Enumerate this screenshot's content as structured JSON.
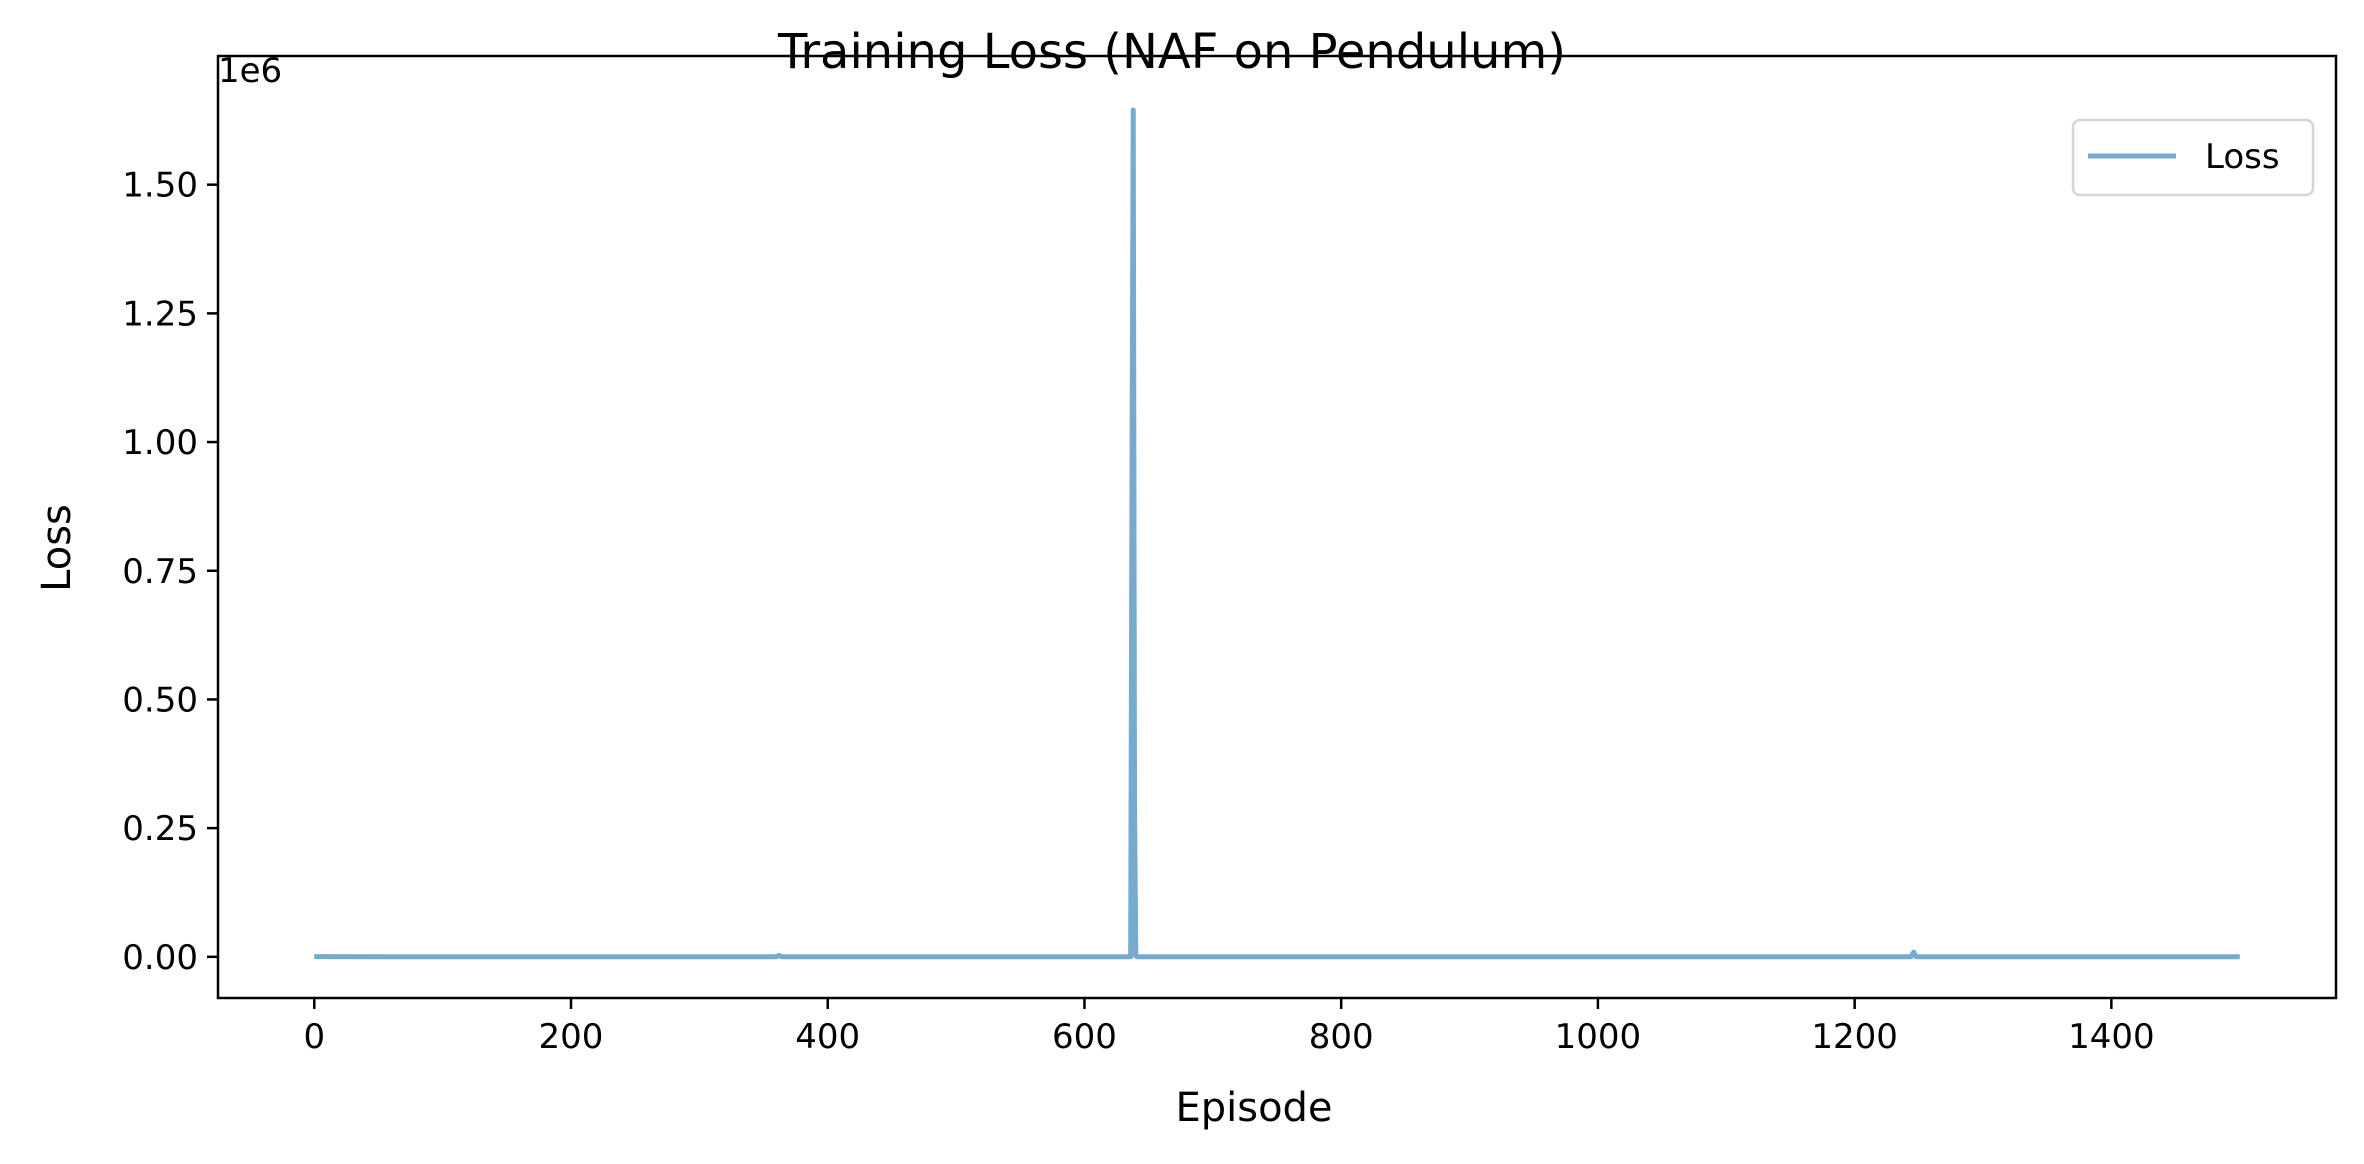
{
  "chart_data": {
    "type": "line",
    "title": "Training Loss (NAF on Pendulum)",
    "xlabel": "Episode",
    "ylabel": "Loss",
    "y_offset_label": "1e6",
    "xlim": [
      -75,
      1575
    ],
    "ylim": [
      -0.08,
      1.75
    ],
    "y_scale_factor": 1000000,
    "xticks": [
      0,
      200,
      400,
      600,
      800,
      1000,
      1200,
      1400
    ],
    "xtick_labels": [
      "0",
      "200",
      "400",
      "600",
      "800",
      "1000",
      "1200",
      "1400"
    ],
    "yticks": [
      0.0,
      0.25,
      0.5,
      0.75,
      1.0,
      1.25,
      1.5
    ],
    "ytick_labels": [
      "0.00",
      "0.25",
      "0.50",
      "0.75",
      "1.00",
      "1.25",
      "1.50"
    ],
    "grid": false,
    "legend": {
      "position": "top-right",
      "entries": [
        "Loss"
      ]
    },
    "colors": {
      "series": "#77aacf",
      "axes": "#000000"
    },
    "series": [
      {
        "name": "Loss",
        "x": [
          0,
          100,
          200,
          300,
          360,
          362,
          364,
          400,
          500,
          600,
          636,
          637,
          638,
          639,
          640,
          641,
          700,
          800,
          900,
          1000,
          1100,
          1200,
          1244,
          1246,
          1248,
          1300,
          1400,
          1500
        ],
        "y": [
          0.0003,
          0.0002,
          0.0002,
          0.0001,
          0.0001,
          0.003,
          0.0001,
          0.0001,
          0.0001,
          0.0001,
          0.0001,
          0.9,
          1.645,
          0.3,
          0.002,
          0.0001,
          0.0001,
          0.0001,
          0.0001,
          0.0001,
          0.0001,
          0.0001,
          0.0001,
          0.009,
          0.0001,
          0.0001,
          0.0001,
          0.0001
        ]
      }
    ]
  }
}
